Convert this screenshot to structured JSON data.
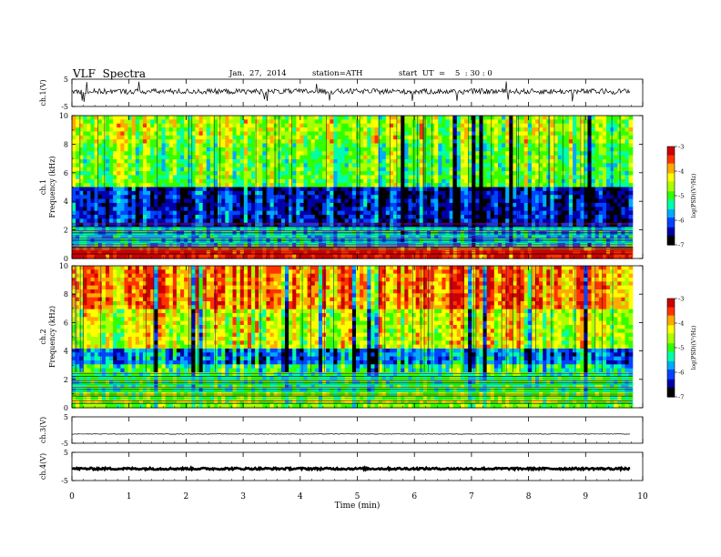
{
  "header": {
    "title": "VLF  Spectra",
    "date": "Jan.  27,  2014",
    "station": "station=ATH",
    "start": "start  UT  =    5  : 30 : 0"
  },
  "colors": {
    "colormap": [
      "#000000",
      "#0000aa",
      "#0044ff",
      "#00aaff",
      "#00ffaa",
      "#33ff00",
      "#aaff00",
      "#ffff00",
      "#ffaa00",
      "#ff3300",
      "#cc0000",
      "#ffffff"
    ],
    "trace": "#000000",
    "axis": "#000000"
  },
  "chart_data": [
    {
      "type": "line",
      "panel": "ch1-waveform",
      "ylabel": "ch.1(V)",
      "ylim": [
        -5,
        5
      ],
      "y_ticks": [
        "5",
        "-5"
      ],
      "xlim": [
        0,
        10
      ],
      "description_values": {
        "baseline": 0.5,
        "noise_amplitude": 1.0,
        "max_spike": 4.0
      }
    },
    {
      "type": "heatmap",
      "panel": "ch1-spectrogram",
      "ylabel_top": "ch.1",
      "ylabel": "Frequency  (kHz)",
      "ylim": [
        0,
        10
      ],
      "y_ticks": [
        "0",
        "2",
        "4",
        "6",
        "8",
        "10"
      ],
      "xlim": [
        0,
        9.82
      ],
      "colorbar": {
        "label": "log(PSD)(V²/Hz)",
        "range": [
          -7,
          -3
        ],
        "ticks": [
          "-3",
          "-4",
          "-5",
          "-6",
          "-7"
        ]
      },
      "bands": [
        {
          "from": 0.0,
          "to": 0.8,
          "level": -3.2
        },
        {
          "from": 0.8,
          "to": 2.2,
          "level": -5.6
        },
        {
          "from": 2.2,
          "to": 5.0,
          "level": -6.3
        },
        {
          "from": 5.0,
          "to": 8.0,
          "level": -4.9
        },
        {
          "from": 8.0,
          "to": 10.0,
          "level": -4.6
        }
      ]
    },
    {
      "type": "heatmap",
      "panel": "ch2-spectrogram",
      "ylabel_top": "ch.2",
      "ylabel": "Frequency  (kHz)",
      "ylim": [
        0,
        10
      ],
      "y_ticks": [
        "0",
        "2",
        "4",
        "6",
        "8",
        "10"
      ],
      "xlim": [
        0,
        9.82
      ],
      "colorbar": {
        "label": "log(PSD)(V²/Hz)",
        "range": [
          -7,
          -3
        ],
        "ticks": [
          "-3",
          "-4",
          "-5",
          "-6",
          "-7"
        ]
      },
      "bands": [
        {
          "from": 0.0,
          "to": 1.0,
          "level": -4.8
        },
        {
          "from": 1.0,
          "to": 3.0,
          "level": -5.2
        },
        {
          "from": 3.0,
          "to": 4.2,
          "level": -5.9
        },
        {
          "from": 4.2,
          "to": 7.0,
          "level": -4.5
        },
        {
          "from": 7.0,
          "to": 10.0,
          "level": -3.8
        }
      ]
    },
    {
      "type": "line",
      "panel": "ch3-waveform",
      "ylabel": "ch.3(V)",
      "ylim": [
        -5,
        5
      ],
      "y_ticks": [
        "5",
        "-5"
      ],
      "xlim": [
        0,
        10
      ],
      "description_values": {
        "baseline": -1.5,
        "noise_amplitude": 0.1
      }
    },
    {
      "type": "line",
      "panel": "ch4-waveform",
      "ylabel": "ch.4(V)",
      "ylim": [
        -5,
        5
      ],
      "y_ticks": [
        "5",
        "-5"
      ],
      "xlim": [
        0,
        10
      ],
      "description_values": {
        "baseline": -0.8,
        "noise_amplitude": 0.35
      }
    }
  ],
  "xaxis": {
    "label": "Time  (min)",
    "ticks": [
      "0",
      "1",
      "2",
      "3",
      "4",
      "5",
      "6",
      "7",
      "8",
      "9",
      "10"
    ]
  }
}
